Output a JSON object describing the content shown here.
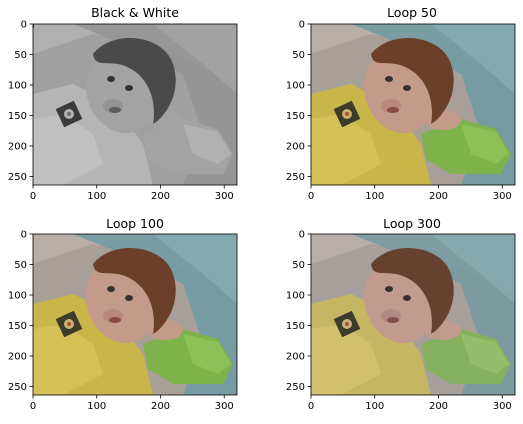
{
  "figure": {
    "panels": [
      {
        "title": "Black & White",
        "grayscale": true,
        "xticks": [
          "0",
          "100",
          "200",
          "300"
        ],
        "yticks": [
          "0",
          "50",
          "100",
          "150",
          "200",
          "250"
        ]
      },
      {
        "title": "Loop 50",
        "grayscale": false,
        "saturation": 1.0,
        "xticks": [
          "0",
          "100",
          "200",
          "300"
        ],
        "yticks": [
          "0",
          "50",
          "100",
          "150",
          "200",
          "250"
        ]
      },
      {
        "title": "Loop 100",
        "grayscale": false,
        "saturation": 1.0,
        "xticks": [
          "0",
          "100",
          "200",
          "300"
        ],
        "yticks": [
          "0",
          "50",
          "100",
          "150",
          "200",
          "250"
        ]
      },
      {
        "title": "Loop 300",
        "grayscale": false,
        "saturation": 0.85,
        "xticks": [
          "0",
          "100",
          "200",
          "300"
        ],
        "yticks": [
          "0",
          "50",
          "100",
          "150",
          "200",
          "250"
        ]
      }
    ],
    "image_extent": {
      "width": 320,
      "height": 264
    },
    "colors": {
      "shirt": "#c8b64a",
      "sleeve": "#7fb24a",
      "pillow": "#6f9aa3",
      "background": "#a89f98",
      "hair": "#6b3f2a",
      "skin": "#c49a8a",
      "patch": "#3b3d2a"
    }
  }
}
